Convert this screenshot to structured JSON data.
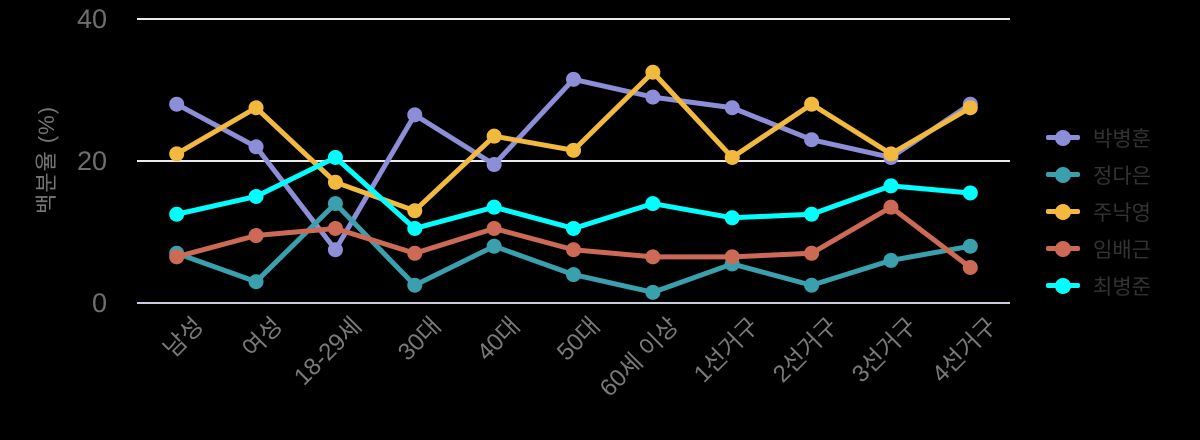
{
  "chart_data": {
    "type": "line",
    "title": "",
    "xlabel": "",
    "ylabel": "백분율 (%)",
    "categories": [
      "남성",
      "여성",
      "18-29세",
      "30대",
      "40대",
      "50대",
      "60세 이상",
      "1선거구",
      "2선거구",
      "3선거구",
      "4선거구"
    ],
    "series": [
      {
        "name": "박병훈",
        "color": "#8d8dd8",
        "values": [
          28,
          22,
          7.5,
          26.5,
          19.5,
          31.5,
          29,
          27.5,
          23,
          20.5,
          28
        ]
      },
      {
        "name": "정다은",
        "color": "#3aa0ad",
        "values": [
          7,
          3,
          14,
          2.5,
          8,
          4,
          1.5,
          5.5,
          2.5,
          6,
          8
        ]
      },
      {
        "name": "주낙영",
        "color": "#f2b93f",
        "values": [
          21,
          27.5,
          17,
          13,
          23.5,
          21.5,
          32.5,
          20.5,
          28,
          21,
          27.5
        ]
      },
      {
        "name": "임배근",
        "color": "#cd6a55",
        "values": [
          6.5,
          9.5,
          10.5,
          7,
          10.5,
          7.5,
          6.5,
          6.5,
          7,
          13.5,
          5
        ]
      },
      {
        "name": "최병준",
        "color": "#00ffff",
        "values": [
          12.5,
          15,
          20.5,
          10.5,
          13.5,
          10.5,
          14,
          12,
          12.5,
          16.5,
          15.5
        ]
      }
    ],
    "yticks": [
      0,
      20,
      40
    ],
    "ylim": [
      0,
      40
    ],
    "grid": true,
    "legend_position": "right",
    "colors": {
      "background": "#000000",
      "gridline": "#ebebee",
      "axis_line": "#c9cbdd",
      "tick_text": "#6e6e6e",
      "xlabel_text": "#7a7a7a",
      "legend_text": "#333333"
    }
  }
}
